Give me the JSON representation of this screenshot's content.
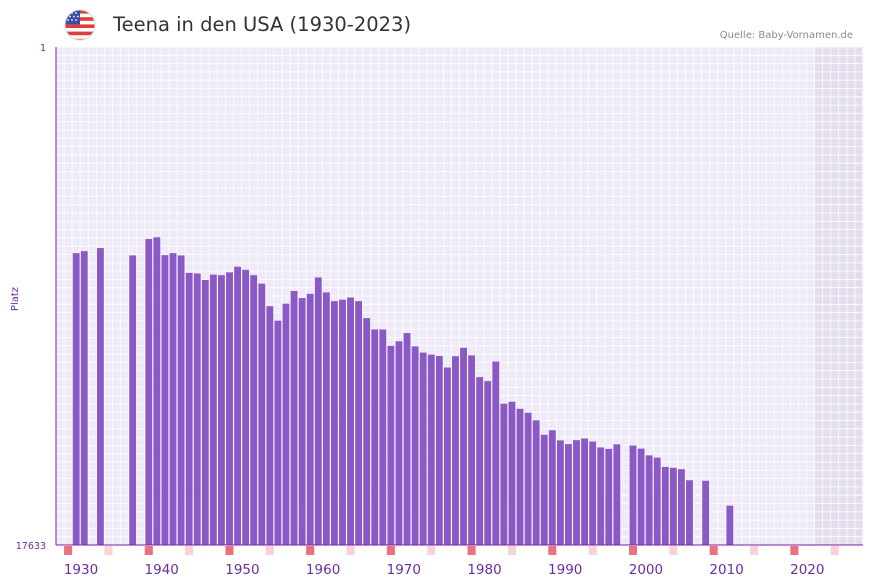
{
  "header": {
    "title": "Teena in den USA (1930-2023)",
    "source": "Quelle: Baby-Vornamen.de",
    "flag_icon": "usa-flag-icon"
  },
  "colors": {
    "bar": "#8a59c6",
    "axis": "#7b1fa2",
    "tick_label": "#6a2e9e",
    "grid_bg": "#efeaf8",
    "grid_line": "#ffffff",
    "future_bg": "#e3ddee",
    "decade_marker": "#e8737a",
    "half_decade_marker": "#f7d3d6",
    "title": "#333333",
    "source": "#8a8a8a"
  },
  "chart_data": {
    "type": "bar",
    "title": "Teena in den USA (1930-2023)",
    "xlabel": "",
    "ylabel": "Platz",
    "y_inverted": true,
    "ylim": [
      1,
      17633
    ],
    "y_ticks": [
      "1",
      "17633"
    ],
    "x_tick_labels": [
      "1930",
      "1940",
      "1950",
      "1960",
      "1970",
      "1980",
      "1990",
      "2000",
      "2010",
      "2020"
    ],
    "x_range": [
      1929,
      2028
    ],
    "shaded_future_from": 2023,
    "grid": true,
    "years": [
      1931,
      1932,
      1934,
      1938,
      1940,
      1941,
      1942,
      1943,
      1944,
      1945,
      1946,
      1947,
      1948,
      1949,
      1950,
      1951,
      1952,
      1953,
      1954,
      1955,
      1956,
      1957,
      1958,
      1959,
      1960,
      1961,
      1962,
      1963,
      1964,
      1965,
      1966,
      1967,
      1968,
      1969,
      1970,
      1971,
      1972,
      1973,
      1974,
      1975,
      1976,
      1977,
      1978,
      1979,
      1980,
      1981,
      1982,
      1983,
      1984,
      1985,
      1986,
      1987,
      1988,
      1989,
      1990,
      1991,
      1992,
      1993,
      1994,
      1995,
      1996,
      1997,
      1998,
      2000,
      2001,
      2002,
      2003,
      2004,
      2005,
      2006,
      2007,
      2009,
      2012
    ],
    "ranks": [
      7300,
      7230,
      7120,
      7380,
      6800,
      6740,
      7370,
      7300,
      7380,
      8000,
      8020,
      8250,
      8060,
      8080,
      7980,
      7780,
      7890,
      8080,
      8380,
      9180,
      9690,
      9090,
      8640,
      8890,
      8740,
      8160,
      8690,
      9000,
      8950,
      8870,
      9000,
      9600,
      10000,
      10000,
      10580,
      10420,
      10130,
      10600,
      10820,
      10890,
      10940,
      11350,
      10950,
      10650,
      10920,
      11690,
      11830,
      11140,
      12630,
      12560,
      12810,
      12950,
      13220,
      13730,
      13570,
      13930,
      14060,
      13920,
      13860,
      13970,
      14180,
      14230,
      14070,
      14110,
      14220,
      14460,
      14540,
      14870,
      14900,
      14950,
      15340,
      15360,
      16240
    ],
    "decade_marker_years": [
      1930,
      1940,
      1950,
      1960,
      1970,
      1980,
      1990,
      2000,
      2010,
      2020
    ],
    "half_decade_marker_years": [
      1935,
      1945,
      1955,
      1965,
      1975,
      1985,
      1995,
      2005,
      2015,
      2025
    ]
  }
}
